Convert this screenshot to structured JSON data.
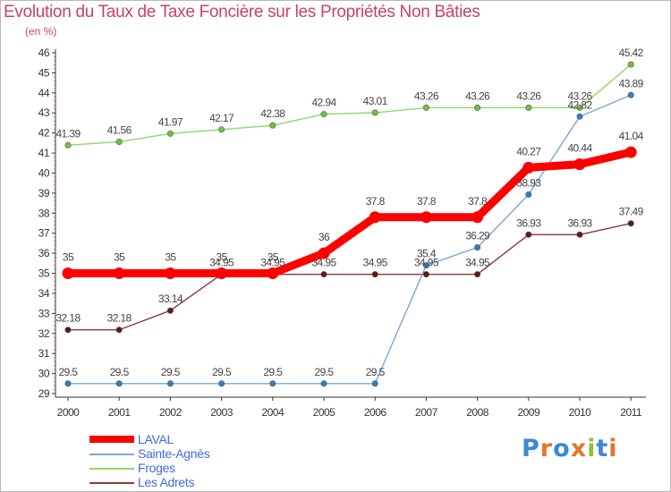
{
  "title": "Evolution du Taux de Taxe Foncière sur les Propriétés Non Bâties",
  "unit_label": "(en %)",
  "logo": {
    "text": "Proxiti",
    "letters": [
      "P",
      "r",
      "o",
      "x",
      "i",
      "t",
      "i"
    ],
    "colors": [
      "#3b88d6",
      "#e2772b",
      "#3b88d6",
      "#e2772b",
      "#8ac43f",
      "#3b88d6",
      "#e2772b"
    ]
  },
  "colors": {
    "title": "#c8416a",
    "legend_text": "#4169e1",
    "axis": "#333333",
    "grid": "#e6e6e6",
    "border": "#b9b9b9"
  },
  "chart_data": {
    "type": "line",
    "title": "Evolution du Taux de Taxe Foncière sur les Propriétés Non Bâties",
    "ylabel": "(en %)",
    "xlabel": "",
    "ylim": [
      29,
      46
    ],
    "yticks": [
      "29",
      "30",
      "31",
      "32",
      "33",
      "34",
      "35",
      "36",
      "37",
      "38",
      "39",
      "40",
      "41",
      "42",
      "43",
      "44",
      "45",
      "46"
    ],
    "x": [
      "2000",
      "2001",
      "2002",
      "2003",
      "2004",
      "2005",
      "2006",
      "2007",
      "2008",
      "2009",
      "2010",
      "2011"
    ],
    "grid": false,
    "legend_position": "bottom-left",
    "series": [
      {
        "name": "LAVAL",
        "color": "#ff0000",
        "marker_color": "#ff0000",
        "emphasis": true,
        "values": [
          35,
          35,
          35,
          35,
          35,
          36,
          37.8,
          37.8,
          37.8,
          40.27,
          40.44,
          41.04
        ],
        "labels": [
          "35",
          "35",
          "35",
          "35",
          "35",
          "36",
          "37.8",
          "37.8",
          "37.8",
          "40.27",
          "40.44",
          "41.04"
        ]
      },
      {
        "name": "Sainte-Agnès",
        "color": "#7aa7d1",
        "marker_color": "#2f7fc4",
        "values": [
          29.5,
          29.5,
          29.5,
          29.5,
          29.5,
          29.5,
          29.5,
          35.4,
          36.29,
          38.93,
          42.82,
          43.89
        ],
        "labels": [
          "29.5",
          "29.5",
          "29.5",
          "29.5",
          "29.5",
          "29.5",
          "29.5",
          "35.4",
          "36.29",
          "38.93",
          "42.82",
          "43.89"
        ]
      },
      {
        "name": "Froges",
        "color": "#8fd865",
        "marker_color": "#6cc43f",
        "values": [
          41.39,
          41.56,
          41.97,
          42.17,
          42.38,
          42.94,
          43.01,
          43.26,
          43.26,
          43.26,
          43.26,
          45.42
        ],
        "labels": [
          "41.39",
          "41.56",
          "41.97",
          "42.17",
          "42.38",
          "42.94",
          "43.01",
          "43.26",
          "43.26",
          "43.26",
          "43.26",
          "45.42"
        ]
      },
      {
        "name": "Les Adrets",
        "color": "#8a3a3a",
        "marker_color": "#5c1a1a",
        "values": [
          32.18,
          32.18,
          33.14,
          34.95,
          34.95,
          34.95,
          34.95,
          34.95,
          34.95,
          36.93,
          36.93,
          37.49
        ],
        "labels": [
          "32.18",
          "32.18",
          "33.14",
          "34.95",
          "34.95",
          "34.95",
          "34.95",
          "34.95",
          "34.95",
          "36.93",
          "36.93",
          "37.49"
        ]
      }
    ]
  }
}
